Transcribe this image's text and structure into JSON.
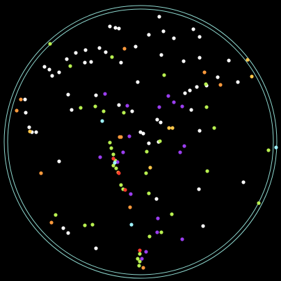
{
  "sky_map": {
    "background": "#000000",
    "horizon_color": "#8fd9d0",
    "star_colors": {
      "white": "#ffffff",
      "green": "#b8f050",
      "orange": "#ff9a3c",
      "purple": "#9b3ef0",
      "red": "#ff3a2e",
      "cyan": "#9ef2ff",
      "amber": "#ffc84a"
    }
  }
}
